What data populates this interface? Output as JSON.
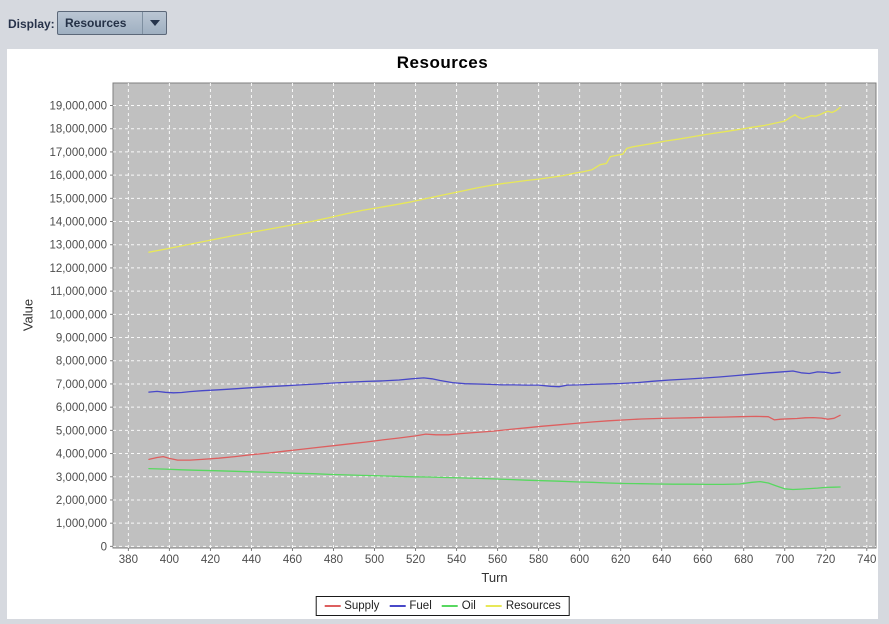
{
  "app": {
    "background_color": "#d6d9df",
    "panel_color": "#ffffff"
  },
  "toolbar": {
    "display_label": "Display:",
    "combobox_value": "Resources"
  },
  "chart_data": {
    "type": "line",
    "title": "Resources",
    "xlabel": "Turn",
    "ylabel": "Value",
    "xlim": [
      372.5,
      744.5
    ],
    "ylim": [
      -70000,
      19970000
    ],
    "x_ticks": [
      380,
      400,
      420,
      440,
      460,
      480,
      500,
      520,
      540,
      560,
      580,
      600,
      620,
      640,
      660,
      680,
      700,
      720,
      740
    ],
    "y_ticks": [
      0,
      1000000,
      2000000,
      3000000,
      4000000,
      5000000,
      6000000,
      7000000,
      8000000,
      9000000,
      10000000,
      11000000,
      12000000,
      13000000,
      14000000,
      15000000,
      16000000,
      17000000,
      18000000,
      19000000
    ],
    "grid": "white dashed gridlines on gray plot background",
    "plot_bg": "#c0c0c0",
    "plot_border": "#7f7f7f",
    "legend_position": "bottom",
    "series": [
      {
        "name": "Supply",
        "color": "#dd5f5f",
        "points": [
          [
            390,
            3750000
          ],
          [
            394,
            3830000
          ],
          [
            397,
            3870000
          ],
          [
            400,
            3790000
          ],
          [
            404,
            3720000
          ],
          [
            410,
            3720000
          ],
          [
            416,
            3750000
          ],
          [
            424,
            3800000
          ],
          [
            432,
            3870000
          ],
          [
            440,
            3950000
          ],
          [
            448,
            4020000
          ],
          [
            456,
            4100000
          ],
          [
            464,
            4180000
          ],
          [
            472,
            4260000
          ],
          [
            480,
            4340000
          ],
          [
            488,
            4420000
          ],
          [
            496,
            4500000
          ],
          [
            504,
            4590000
          ],
          [
            512,
            4670000
          ],
          [
            520,
            4760000
          ],
          [
            525,
            4840000
          ],
          [
            530,
            4810000
          ],
          [
            536,
            4810000
          ],
          [
            542,
            4860000
          ],
          [
            550,
            4910000
          ],
          [
            558,
            4970000
          ],
          [
            566,
            5040000
          ],
          [
            574,
            5110000
          ],
          [
            582,
            5180000
          ],
          [
            590,
            5240000
          ],
          [
            598,
            5300000
          ],
          [
            606,
            5360000
          ],
          [
            614,
            5410000
          ],
          [
            622,
            5450000
          ],
          [
            630,
            5490000
          ],
          [
            638,
            5510000
          ],
          [
            646,
            5530000
          ],
          [
            654,
            5540000
          ],
          [
            662,
            5560000
          ],
          [
            670,
            5570000
          ],
          [
            678,
            5590000
          ],
          [
            686,
            5600000
          ],
          [
            692,
            5590000
          ],
          [
            695,
            5450000
          ],
          [
            698,
            5480000
          ],
          [
            702,
            5500000
          ],
          [
            706,
            5510000
          ],
          [
            710,
            5540000
          ],
          [
            714,
            5550000
          ],
          [
            718,
            5530000
          ],
          [
            721,
            5480000
          ],
          [
            724,
            5520000
          ],
          [
            727,
            5650000
          ]
        ]
      },
      {
        "name": "Fuel",
        "color": "#4848c8",
        "points": [
          [
            390,
            6650000
          ],
          [
            394,
            6680000
          ],
          [
            398,
            6640000
          ],
          [
            402,
            6620000
          ],
          [
            406,
            6630000
          ],
          [
            410,
            6670000
          ],
          [
            416,
            6710000
          ],
          [
            424,
            6750000
          ],
          [
            432,
            6790000
          ],
          [
            440,
            6840000
          ],
          [
            448,
            6880000
          ],
          [
            456,
            6920000
          ],
          [
            464,
            6960000
          ],
          [
            472,
            7000000
          ],
          [
            480,
            7040000
          ],
          [
            488,
            7080000
          ],
          [
            496,
            7110000
          ],
          [
            504,
            7130000
          ],
          [
            512,
            7170000
          ],
          [
            518,
            7220000
          ],
          [
            524,
            7260000
          ],
          [
            528,
            7220000
          ],
          [
            532,
            7150000
          ],
          [
            538,
            7060000
          ],
          [
            544,
            7010000
          ],
          [
            550,
            7000000
          ],
          [
            556,
            6980000
          ],
          [
            562,
            6960000
          ],
          [
            568,
            6960000
          ],
          [
            574,
            6950000
          ],
          [
            580,
            6950000
          ],
          [
            586,
            6900000
          ],
          [
            590,
            6880000
          ],
          [
            594,
            6950000
          ],
          [
            600,
            6960000
          ],
          [
            606,
            6980000
          ],
          [
            612,
            7000000
          ],
          [
            620,
            7020000
          ],
          [
            628,
            7060000
          ],
          [
            636,
            7120000
          ],
          [
            644,
            7170000
          ],
          [
            652,
            7210000
          ],
          [
            660,
            7250000
          ],
          [
            668,
            7300000
          ],
          [
            676,
            7360000
          ],
          [
            684,
            7420000
          ],
          [
            692,
            7480000
          ],
          [
            700,
            7530000
          ],
          [
            704,
            7560000
          ],
          [
            708,
            7480000
          ],
          [
            712,
            7450000
          ],
          [
            716,
            7520000
          ],
          [
            720,
            7500000
          ],
          [
            723,
            7460000
          ],
          [
            727,
            7500000
          ]
        ]
      },
      {
        "name": "Oil",
        "color": "#58d860",
        "points": [
          [
            390,
            3350000
          ],
          [
            398,
            3330000
          ],
          [
            406,
            3300000
          ],
          [
            414,
            3280000
          ],
          [
            422,
            3260000
          ],
          [
            430,
            3240000
          ],
          [
            438,
            3220000
          ],
          [
            446,
            3200000
          ],
          [
            454,
            3180000
          ],
          [
            462,
            3150000
          ],
          [
            470,
            3130000
          ],
          [
            478,
            3100000
          ],
          [
            486,
            3080000
          ],
          [
            494,
            3060000
          ],
          [
            502,
            3040000
          ],
          [
            510,
            3020000
          ],
          [
            518,
            3000000
          ],
          [
            526,
            2990000
          ],
          [
            534,
            2970000
          ],
          [
            542,
            2950000
          ],
          [
            550,
            2930000
          ],
          [
            558,
            2910000
          ],
          [
            566,
            2880000
          ],
          [
            574,
            2850000
          ],
          [
            582,
            2830000
          ],
          [
            590,
            2810000
          ],
          [
            598,
            2780000
          ],
          [
            606,
            2760000
          ],
          [
            614,
            2730000
          ],
          [
            622,
            2710000
          ],
          [
            630,
            2700000
          ],
          [
            638,
            2690000
          ],
          [
            646,
            2680000
          ],
          [
            654,
            2680000
          ],
          [
            662,
            2670000
          ],
          [
            670,
            2670000
          ],
          [
            678,
            2690000
          ],
          [
            684,
            2760000
          ],
          [
            688,
            2790000
          ],
          [
            692,
            2730000
          ],
          [
            696,
            2600000
          ],
          [
            700,
            2480000
          ],
          [
            704,
            2450000
          ],
          [
            708,
            2470000
          ],
          [
            712,
            2490000
          ],
          [
            716,
            2510000
          ],
          [
            720,
            2540000
          ],
          [
            724,
            2550000
          ],
          [
            727,
            2560000
          ]
        ]
      },
      {
        "name": "Resources",
        "color": "#e8e858",
        "points": [
          [
            390,
            12680000
          ],
          [
            398,
            12810000
          ],
          [
            406,
            12950000
          ],
          [
            414,
            13090000
          ],
          [
            422,
            13230000
          ],
          [
            430,
            13370000
          ],
          [
            438,
            13500000
          ],
          [
            446,
            13630000
          ],
          [
            454,
            13760000
          ],
          [
            462,
            13890000
          ],
          [
            470,
            14020000
          ],
          [
            478,
            14170000
          ],
          [
            486,
            14330000
          ],
          [
            494,
            14480000
          ],
          [
            502,
            14600000
          ],
          [
            510,
            14720000
          ],
          [
            518,
            14850000
          ],
          [
            526,
            15000000
          ],
          [
            534,
            15150000
          ],
          [
            542,
            15300000
          ],
          [
            550,
            15450000
          ],
          [
            556,
            15550000
          ],
          [
            562,
            15630000
          ],
          [
            568,
            15700000
          ],
          [
            574,
            15770000
          ],
          [
            580,
            15830000
          ],
          [
            586,
            15900000
          ],
          [
            592,
            15980000
          ],
          [
            598,
            16090000
          ],
          [
            602,
            16150000
          ],
          [
            606,
            16230000
          ],
          [
            610,
            16450000
          ],
          [
            613,
            16500000
          ],
          [
            615,
            16800000
          ],
          [
            618,
            16850000
          ],
          [
            621,
            16900000
          ],
          [
            623,
            17150000
          ],
          [
            626,
            17220000
          ],
          [
            630,
            17280000
          ],
          [
            636,
            17370000
          ],
          [
            642,
            17470000
          ],
          [
            648,
            17550000
          ],
          [
            654,
            17640000
          ],
          [
            660,
            17730000
          ],
          [
            666,
            17810000
          ],
          [
            672,
            17890000
          ],
          [
            678,
            17970000
          ],
          [
            684,
            18060000
          ],
          [
            690,
            18140000
          ],
          [
            696,
            18250000
          ],
          [
            700,
            18330000
          ],
          [
            703,
            18500000
          ],
          [
            705,
            18600000
          ],
          [
            707,
            18480000
          ],
          [
            709,
            18430000
          ],
          [
            711,
            18500000
          ],
          [
            713,
            18560000
          ],
          [
            715,
            18540000
          ],
          [
            717,
            18600000
          ],
          [
            719,
            18680000
          ],
          [
            721,
            18750000
          ],
          [
            723,
            18700000
          ],
          [
            725,
            18780000
          ],
          [
            727,
            18920000
          ]
        ]
      }
    ]
  }
}
